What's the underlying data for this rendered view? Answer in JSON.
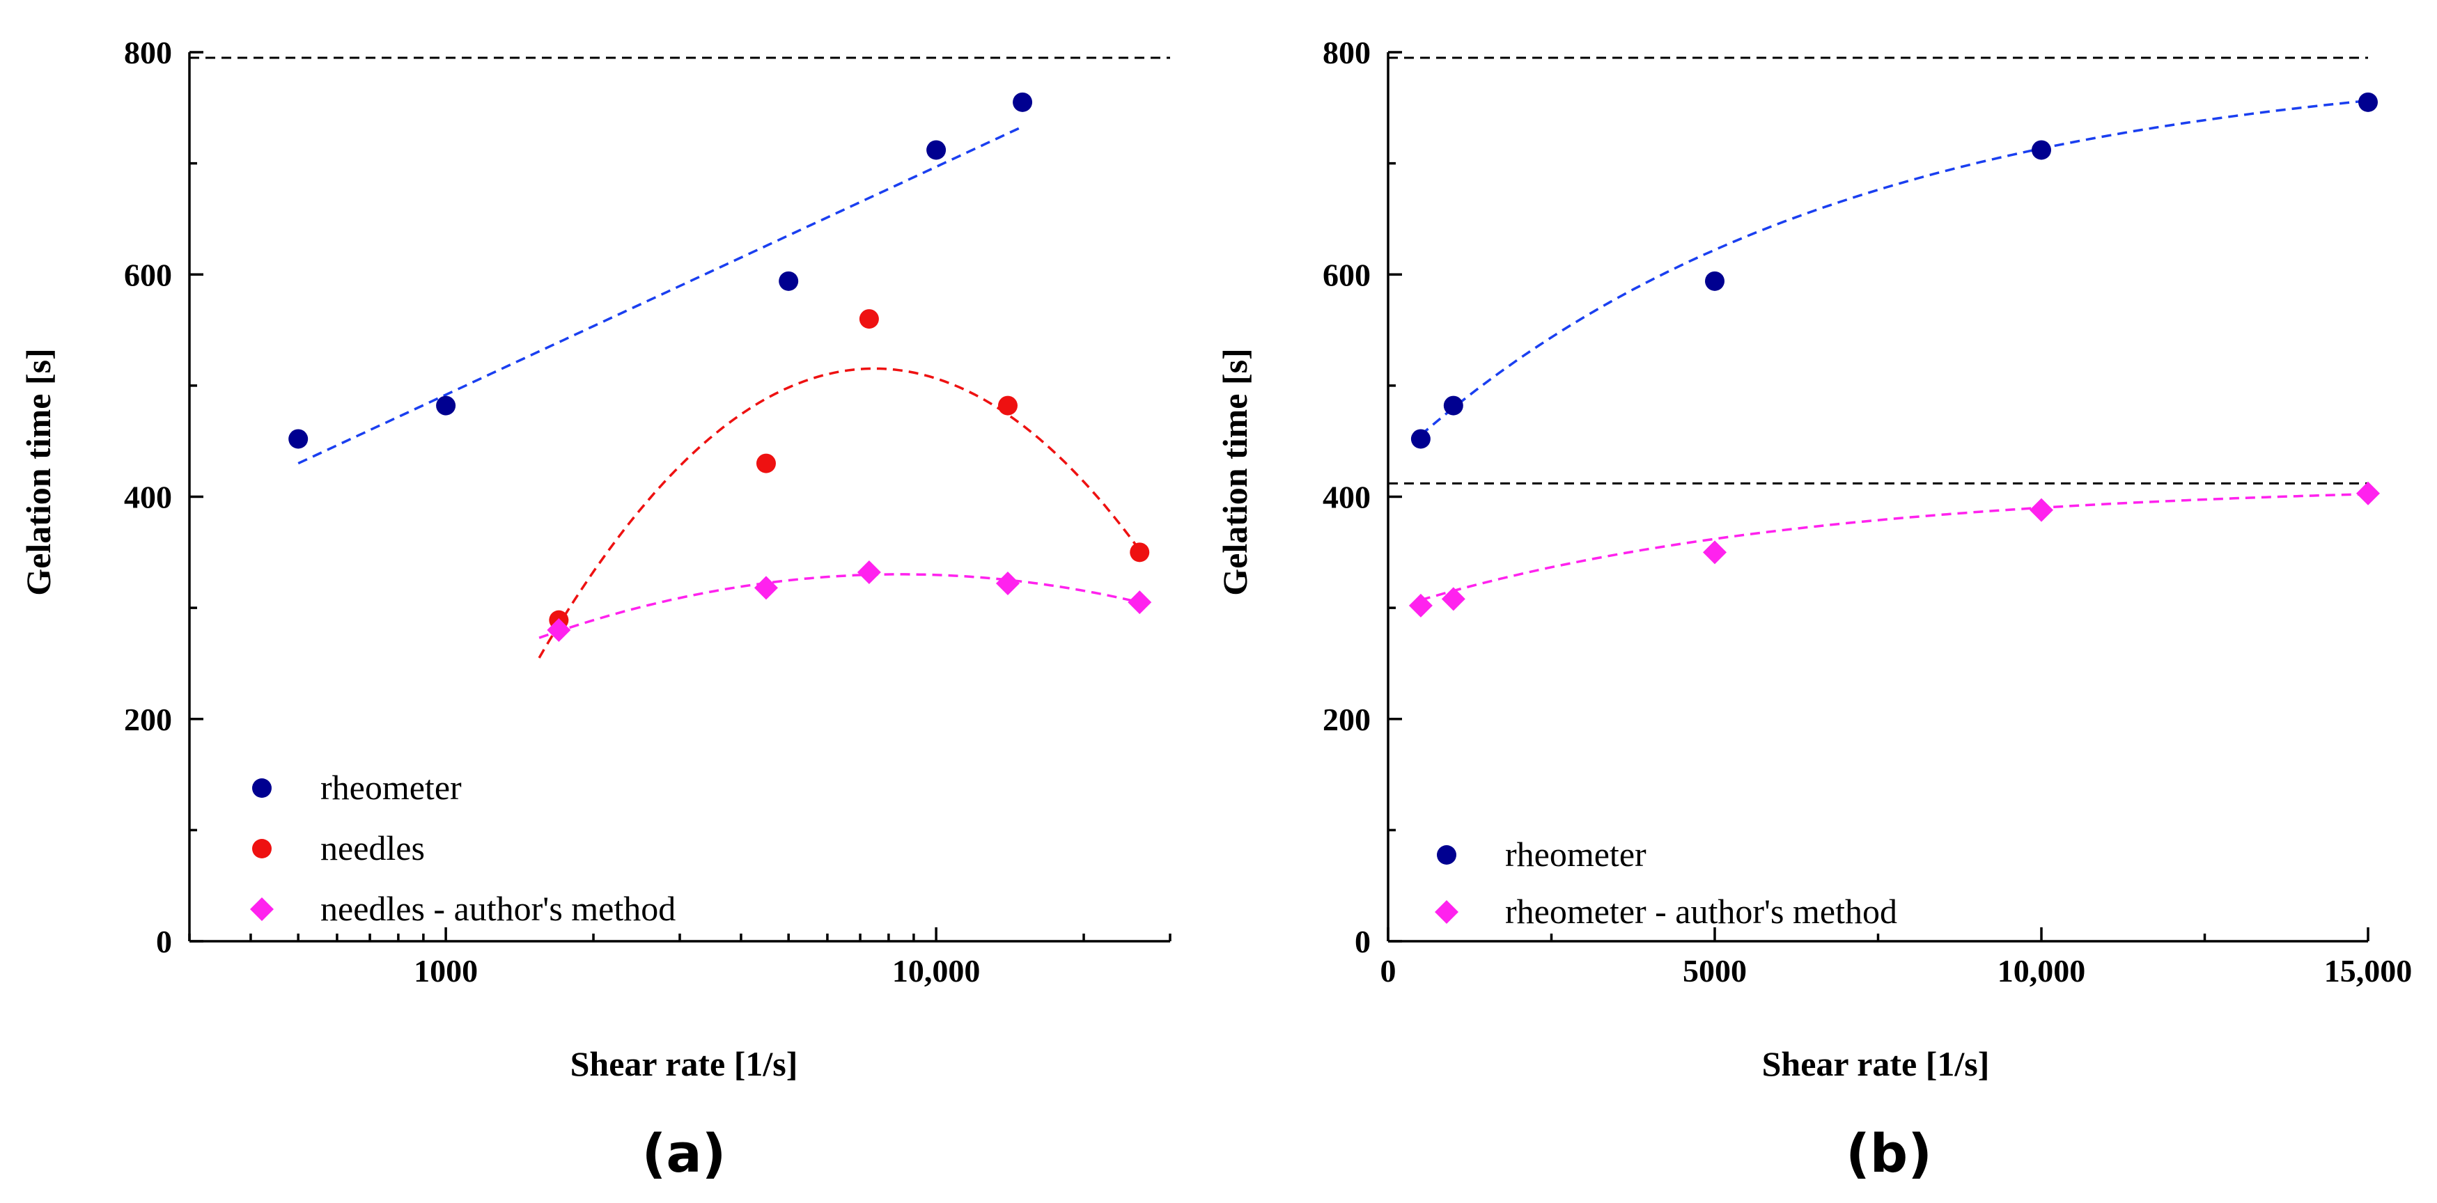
{
  "chart_data": [
    {
      "panel": "(a)",
      "type": "scatter",
      "xscale": "log",
      "xlabel": "Shear rate [1/s]",
      "ylabel": "Gelation time [s]",
      "xlim": [
        300,
        30000
      ],
      "ylim": [
        0,
        800
      ],
      "xticks": [
        1000,
        10000
      ],
      "xtick_labels": [
        "1000",
        "10,000"
      ],
      "yticks": [
        0,
        200,
        400,
        600,
        800
      ],
      "ytick_labels": [
        "0",
        "200",
        "400",
        "600",
        "800"
      ],
      "reference_lines": [
        {
          "y": 795,
          "color": "#000000",
          "style": "dashed"
        }
      ],
      "legend_position": "bottom-left",
      "series": [
        {
          "name": "rheometer",
          "marker": "circle",
          "color": "#000090",
          "x": [
            500,
            1000,
            5000,
            10000,
            15000
          ],
          "y": [
            452,
            482,
            594,
            712,
            755
          ],
          "fit": {
            "kind": "log-linear",
            "color": "#1a3ff0",
            "x_from": 500,
            "x_to": 15000,
            "y_from": 430,
            "y_to": 733
          }
        },
        {
          "name": "needles",
          "marker": "circle",
          "color": "#ee1111",
          "x": [
            1700,
            4500,
            7300,
            14000,
            26000
          ],
          "y": [
            289,
            430,
            560,
            482,
            350
          ],
          "fit": {
            "kind": "log-quadratic",
            "color": "#ee1111",
            "x_from": 1550,
            "x_to": 26000,
            "y_from": 255,
            "x_peak": 7900,
            "y_peak": 515,
            "y_to": 352
          }
        },
        {
          "name": "needles - author's method",
          "marker": "diamond",
          "color": "#ff22ee",
          "x": [
            1700,
            4500,
            7300,
            14000,
            26000
          ],
          "y": [
            280,
            318,
            332,
            322,
            305
          ],
          "fit": {
            "kind": "log-quadratic",
            "color": "#ff22ee",
            "x_from": 1550,
            "x_to": 26000,
            "y_from": 273,
            "x_peak": 7600,
            "y_peak": 330,
            "y_to": 305
          }
        }
      ]
    },
    {
      "panel": "(b)",
      "type": "scatter",
      "xscale": "linear",
      "xlabel": "Shear rate [1/s]",
      "ylabel": "Gelation time [s]",
      "xlim": [
        0,
        15000
      ],
      "ylim": [
        0,
        800
      ],
      "xticks": [
        0,
        5000,
        10000,
        15000
      ],
      "xtick_labels": [
        "0",
        "5000",
        "10,000",
        "15,000"
      ],
      "yticks": [
        0,
        200,
        400,
        600,
        800
      ],
      "ytick_labels": [
        "0",
        "200",
        "400",
        "600",
        "800"
      ],
      "reference_lines": [
        {
          "y": 795,
          "color": "#000000",
          "style": "dashed"
        },
        {
          "y": 412,
          "color": "#ff22ee",
          "style": "dashed"
        }
      ],
      "legend_position": "bottom-left",
      "series": [
        {
          "name": "rheometer",
          "marker": "circle",
          "color": "#000090",
          "x": [
            500,
            1000,
            5000,
            10000,
            15000
          ],
          "y": [
            452,
            482,
            594,
            712,
            755
          ],
          "fit": {
            "kind": "saturating",
            "color": "#1a3ff0",
            "x_from": 500,
            "x_to": 15000,
            "a": 795,
            "b": 366,
            "k": 0.00015
          }
        },
        {
          "name": "rheometer - author's method",
          "marker": "diamond",
          "color": "#ff22ee",
          "x": [
            500,
            1000,
            5000,
            10000,
            15000
          ],
          "y": [
            302,
            308,
            350,
            388,
            403
          ],
          "fit": {
            "kind": "saturating",
            "color": "#ff22ee",
            "x_from": 500,
            "x_to": 15000,
            "a": 412,
            "b": 114,
            "k": 0.000165
          }
        }
      ]
    }
  ]
}
